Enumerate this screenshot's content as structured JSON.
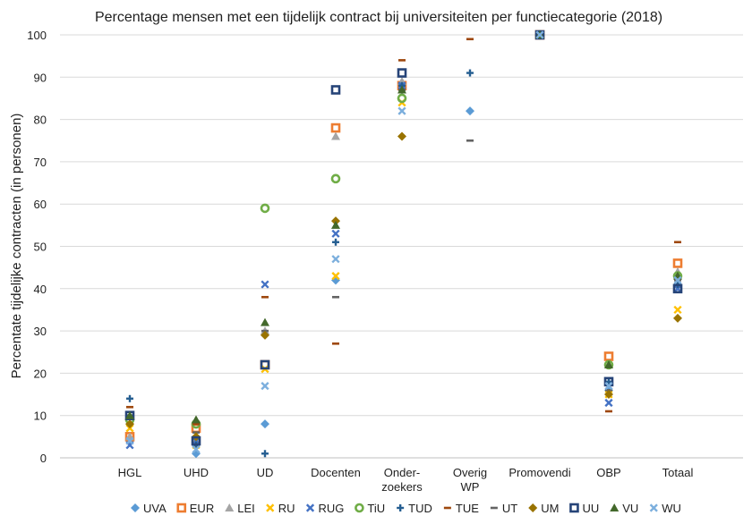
{
  "chart_data": {
    "type": "scatter",
    "title": "Percentage mensen met een tijdelijk contract bij universiteiten per functiecategorie (2018)",
    "ylabel": "Percentate tijdelijke contracten (in personen)",
    "xlabel": "",
    "ylim": [
      0,
      100
    ],
    "yticks": [
      0,
      10,
      20,
      30,
      40,
      50,
      60,
      70,
      80,
      90,
      100
    ],
    "grid": "horizontal",
    "legend": "bottom",
    "categories": [
      [
        "HGL"
      ],
      [
        "UHD"
      ],
      [
        "UD"
      ],
      [
        "Docenten"
      ],
      [
        "Onder-",
        "zoekers"
      ],
      [
        "Overig",
        "WP"
      ],
      [
        "Promovendi"
      ],
      [
        "OBP"
      ],
      [
        "Totaal"
      ]
    ],
    "series": [
      {
        "name": "UVA",
        "marker": "diamond",
        "color": "#5b9bd5",
        "values": [
          4,
          1,
          8,
          42,
          87,
          82,
          100,
          16,
          43
        ]
      },
      {
        "name": "EUR",
        "marker": "square-open",
        "color": "#ed7d31",
        "values": [
          5,
          7,
          22,
          78,
          88,
          null,
          100,
          24,
          46
        ]
      },
      {
        "name": "LEI",
        "marker": "triangle",
        "color": "#a5a5a5",
        "values": [
          5,
          4,
          30,
          76,
          89,
          null,
          100,
          22,
          44
        ]
      },
      {
        "name": "RU",
        "marker": "x",
        "color": "#ffc000",
        "values": [
          7,
          3,
          21,
          43,
          84,
          null,
          100,
          15,
          35
        ]
      },
      {
        "name": "RUG",
        "marker": "x",
        "color": "#4472c4",
        "values": [
          3,
          4,
          41,
          53,
          88,
          null,
          100,
          13,
          40
        ]
      },
      {
        "name": "TiU",
        "marker": "circle-open",
        "color": "#70ad47",
        "values": [
          9,
          8,
          59,
          66,
          85,
          null,
          100,
          22,
          43
        ]
      },
      {
        "name": "TUD",
        "marker": "plus",
        "color": "#255e91",
        "values": [
          14,
          3,
          1,
          51,
          88,
          91,
          100,
          18,
          41
        ]
      },
      {
        "name": "TUE",
        "marker": "dash",
        "color": "#9e480e",
        "values": [
          12,
          8,
          38,
          27,
          94,
          99,
          100,
          11,
          51
        ]
      },
      {
        "name": "UT",
        "marker": "dash",
        "color": "#636363",
        "values": [
          10,
          6,
          30,
          38,
          87,
          75,
          100,
          16,
          42
        ]
      },
      {
        "name": "UM",
        "marker": "diamond",
        "color": "#997300",
        "values": [
          8,
          5,
          29,
          56,
          76,
          null,
          100,
          15,
          33
        ]
      },
      {
        "name": "UU",
        "marker": "square-open",
        "color": "#264478",
        "values": [
          10,
          4,
          22,
          87,
          91,
          null,
          100,
          18,
          40
        ]
      },
      {
        "name": "VU",
        "marker": "triangle",
        "color": "#43682b",
        "values": [
          10,
          9,
          32,
          55,
          87,
          null,
          100,
          22,
          43
        ]
      },
      {
        "name": "WU",
        "marker": "x",
        "color": "#7cafdd",
        "values": [
          4,
          2,
          17,
          47,
          82,
          null,
          100,
          17,
          42
        ]
      }
    ]
  }
}
